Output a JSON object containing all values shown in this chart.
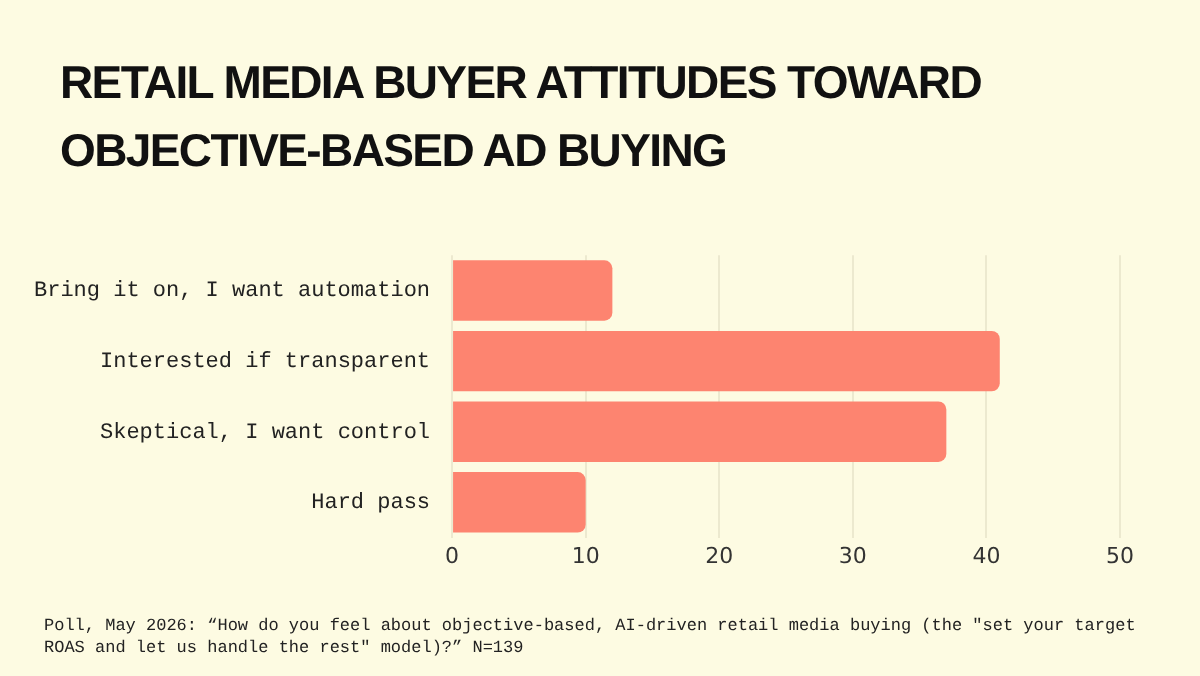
{
  "chart_data": {
    "type": "bar",
    "orientation": "horizontal",
    "title": "RETAIL MEDIA BUYER ATTITUDES TOWARD OBJECTIVE-BASED AD BUYING",
    "categories": [
      "Bring it on, I want automation",
      "Interested if transparent",
      "Skeptical, I want control",
      "Hard pass"
    ],
    "values": [
      12,
      41,
      37,
      10
    ],
    "color": "#fd8470",
    "xlim": [
      0,
      50
    ],
    "xticks": [
      0,
      10,
      20,
      30,
      40,
      50
    ],
    "grid": "x",
    "annotations": [
      "Poll, May 2026: “How do you feel about objective-based, AI-driven retail media buying (the \"set your target ROAS and let us handle the rest\" model)?” N=139"
    ]
  }
}
